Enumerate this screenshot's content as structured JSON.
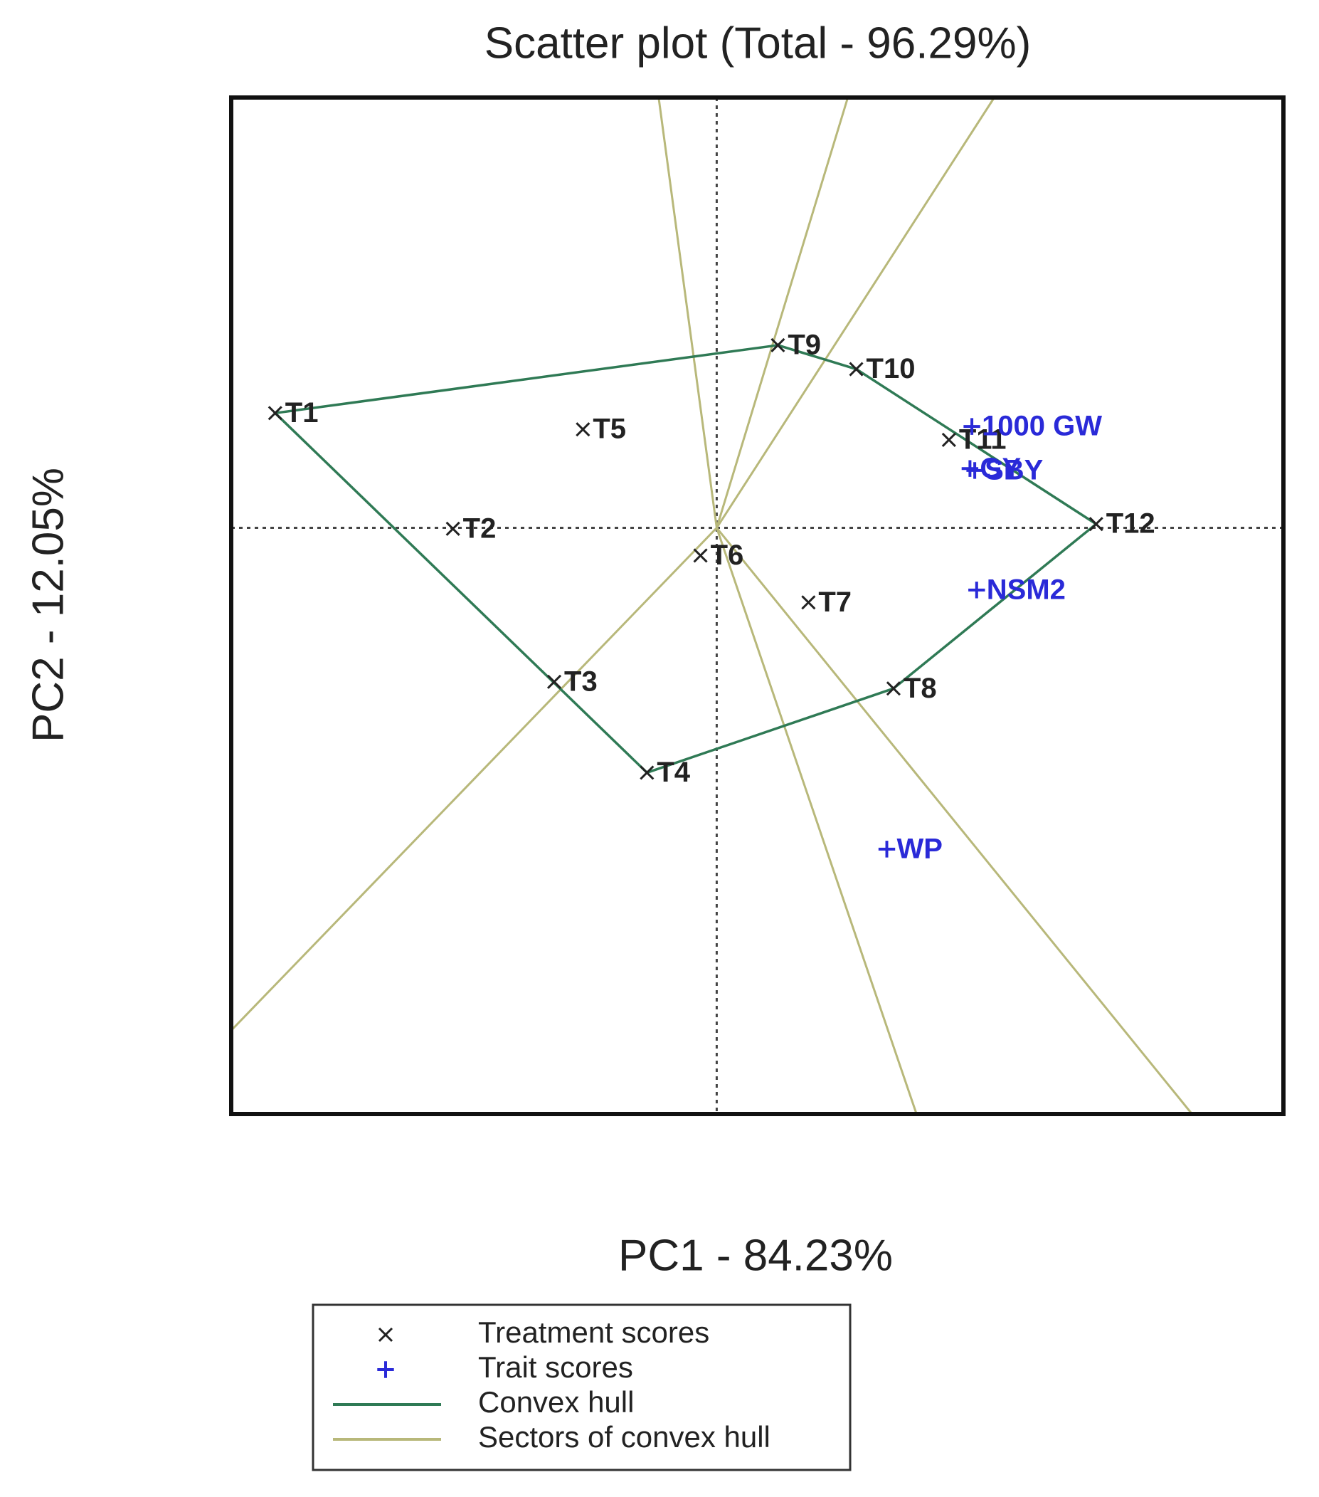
{
  "chart_data": {
    "type": "scatter",
    "title": "Scatter plot (Total - 96.29%)",
    "x_label": "PC1 - 84.23%",
    "y_label": "PC2 - 12.05%",
    "xlim": [
      -5.08,
      5.93
    ],
    "ylim": [
      -6.13,
      4.5
    ],
    "series": [
      {
        "name": "Treatment scores",
        "marker": "x",
        "color": "#222222",
        "labels": [
          "T1",
          "T2",
          "T3",
          "T4",
          "T5",
          "T6",
          "T7",
          "T8",
          "T9",
          "T10",
          "T11",
          "T12"
        ],
        "x": [
          -4.62,
          -2.76,
          -1.7,
          -0.73,
          -1.4,
          -0.17,
          0.96,
          1.85,
          0.64,
          1.46,
          2.43,
          3.97
        ],
        "values": [
          1.2,
          -0.01,
          -1.61,
          -2.56,
          1.03,
          -0.29,
          -0.78,
          -1.68,
          1.91,
          1.66,
          0.92,
          0.04
        ]
      },
      {
        "name": "Trait scores",
        "marker": "+",
        "color": "#2a2ad8",
        "labels": [
          "1000 GW",
          "GY",
          "SBY",
          "NSM2",
          "WP"
        ],
        "x": [
          2.67,
          2.65,
          2.7,
          2.72,
          1.78
        ],
        "values": [
          1.06,
          0.62,
          0.6,
          -0.65,
          -3.36
        ]
      }
    ],
    "hull": {
      "name": "Convex hull",
      "color": "#2f7a55"
    },
    "sectors": {
      "name": "Sectors of convex hull",
      "color": "#b8b87a"
    },
    "legend": "bottom"
  }
}
